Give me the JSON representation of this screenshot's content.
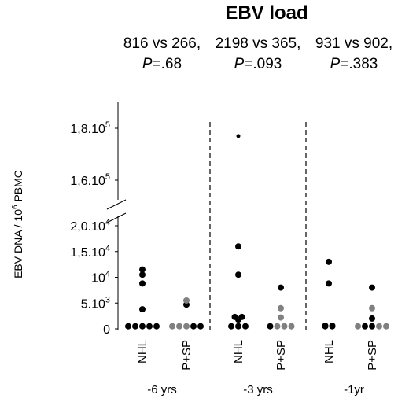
{
  "chart_data": {
    "type": "scatter",
    "title": "EBV load",
    "ylabel_prefix": "EBV DNA / 10",
    "ylabel_sup": "6",
    "ylabel_suffix": " PBMC",
    "colors": {
      "NHL": "#000000",
      "P+SP": "#808080"
    },
    "y_axis": {
      "broken": true,
      "lower_range": [
        0,
        20000
      ],
      "upper_range": [
        160000,
        180000
      ],
      "ticks": [
        {
          "value": 0,
          "base": "0",
          "exp": ""
        },
        {
          "value": 5000,
          "base": "5.10",
          "exp": "3"
        },
        {
          "value": 10000,
          "base": "10",
          "exp": "4"
        },
        {
          "value": 15000,
          "base": "1,5.10",
          "exp": "4"
        },
        {
          "value": 20000,
          "base": "2,0.10",
          "exp": "4"
        },
        {
          "value": 160000,
          "base": "1,6.10",
          "exp": "5"
        },
        {
          "value": 180000,
          "base": "1,8.10",
          "exp": "5"
        }
      ]
    },
    "panels": [
      {
        "period": "-6 yrs",
        "comparison": "816 vs 266,",
        "p_label": "P",
        "p_value": "=.68",
        "groups": [
          {
            "name": "NHL",
            "points": [
              {
                "y": 500,
                "color": "#000000"
              },
              {
                "y": 500,
                "color": "#000000"
              },
              {
                "y": 500,
                "color": "#000000"
              },
              {
                "y": 500,
                "color": "#000000"
              },
              {
                "y": 500,
                "color": "#000000"
              },
              {
                "y": 3800,
                "color": "#000000"
              },
              {
                "y": 8800,
                "color": "#000000"
              },
              {
                "y": 10500,
                "color": "#000000"
              },
              {
                "y": 11500,
                "color": "#000000"
              }
            ]
          },
          {
            "name": "P+SP",
            "points": [
              {
                "y": 500,
                "color": "#808080"
              },
              {
                "y": 500,
                "color": "#808080"
              },
              {
                "y": 500,
                "color": "#808080"
              },
              {
                "y": 500,
                "color": "#000000"
              },
              {
                "y": 500,
                "color": "#000000"
              },
              {
                "y": 4700,
                "color": "#000000"
              },
              {
                "y": 5500,
                "color": "#808080"
              }
            ]
          }
        ]
      },
      {
        "period": "-3 yrs",
        "comparison": "2198 vs 365,",
        "p_label": "P",
        "p_value": "=.093",
        "groups": [
          {
            "name": "NHL",
            "points": [
              {
                "y": 500,
                "color": "#000000"
              },
              {
                "y": 500,
                "color": "#000000"
              },
              {
                "y": 500,
                "color": "#000000"
              },
              {
                "y": 1800,
                "color": "#000000"
              },
              {
                "y": 2300,
                "color": "#000000"
              },
              {
                "y": 2300,
                "color": "#000000"
              },
              {
                "y": 10500,
                "color": "#000000"
              },
              {
                "y": 16000,
                "color": "#000000"
              },
              {
                "y": 177000,
                "color": "#000000",
                "small": true
              }
            ]
          },
          {
            "name": "P+SP",
            "points": [
              {
                "y": 500,
                "color": "#000000"
              },
              {
                "y": 500,
                "color": "#808080"
              },
              {
                "y": 500,
                "color": "#808080"
              },
              {
                "y": 500,
                "color": "#808080"
              },
              {
                "y": 2200,
                "color": "#808080"
              },
              {
                "y": 4000,
                "color": "#808080"
              },
              {
                "y": 8000,
                "color": "#000000"
              }
            ]
          }
        ]
      },
      {
        "period": "-1yr",
        "comparison": "931 vs 902,",
        "p_label": "P",
        "p_value": "=.383",
        "groups": [
          {
            "name": "NHL",
            "points": [
              {
                "y": 600,
                "color": "#000000"
              },
              {
                "y": 600,
                "color": "#000000"
              },
              {
                "y": 500,
                "color": "#000000"
              },
              {
                "y": 500,
                "color": "#000000"
              },
              {
                "y": 8800,
                "color": "#000000"
              },
              {
                "y": 13000,
                "color": "#000000"
              }
            ]
          },
          {
            "name": "P+SP",
            "points": [
              {
                "y": 500,
                "color": "#808080"
              },
              {
                "y": 500,
                "color": "#000000"
              },
              {
                "y": 500,
                "color": "#000000"
              },
              {
                "y": 500,
                "color": "#808080"
              },
              {
                "y": 500,
                "color": "#808080"
              },
              {
                "y": 2000,
                "color": "#000000"
              },
              {
                "y": 4000,
                "color": "#808080"
              },
              {
                "y": 8000,
                "color": "#000000"
              }
            ]
          }
        ]
      }
    ]
  }
}
